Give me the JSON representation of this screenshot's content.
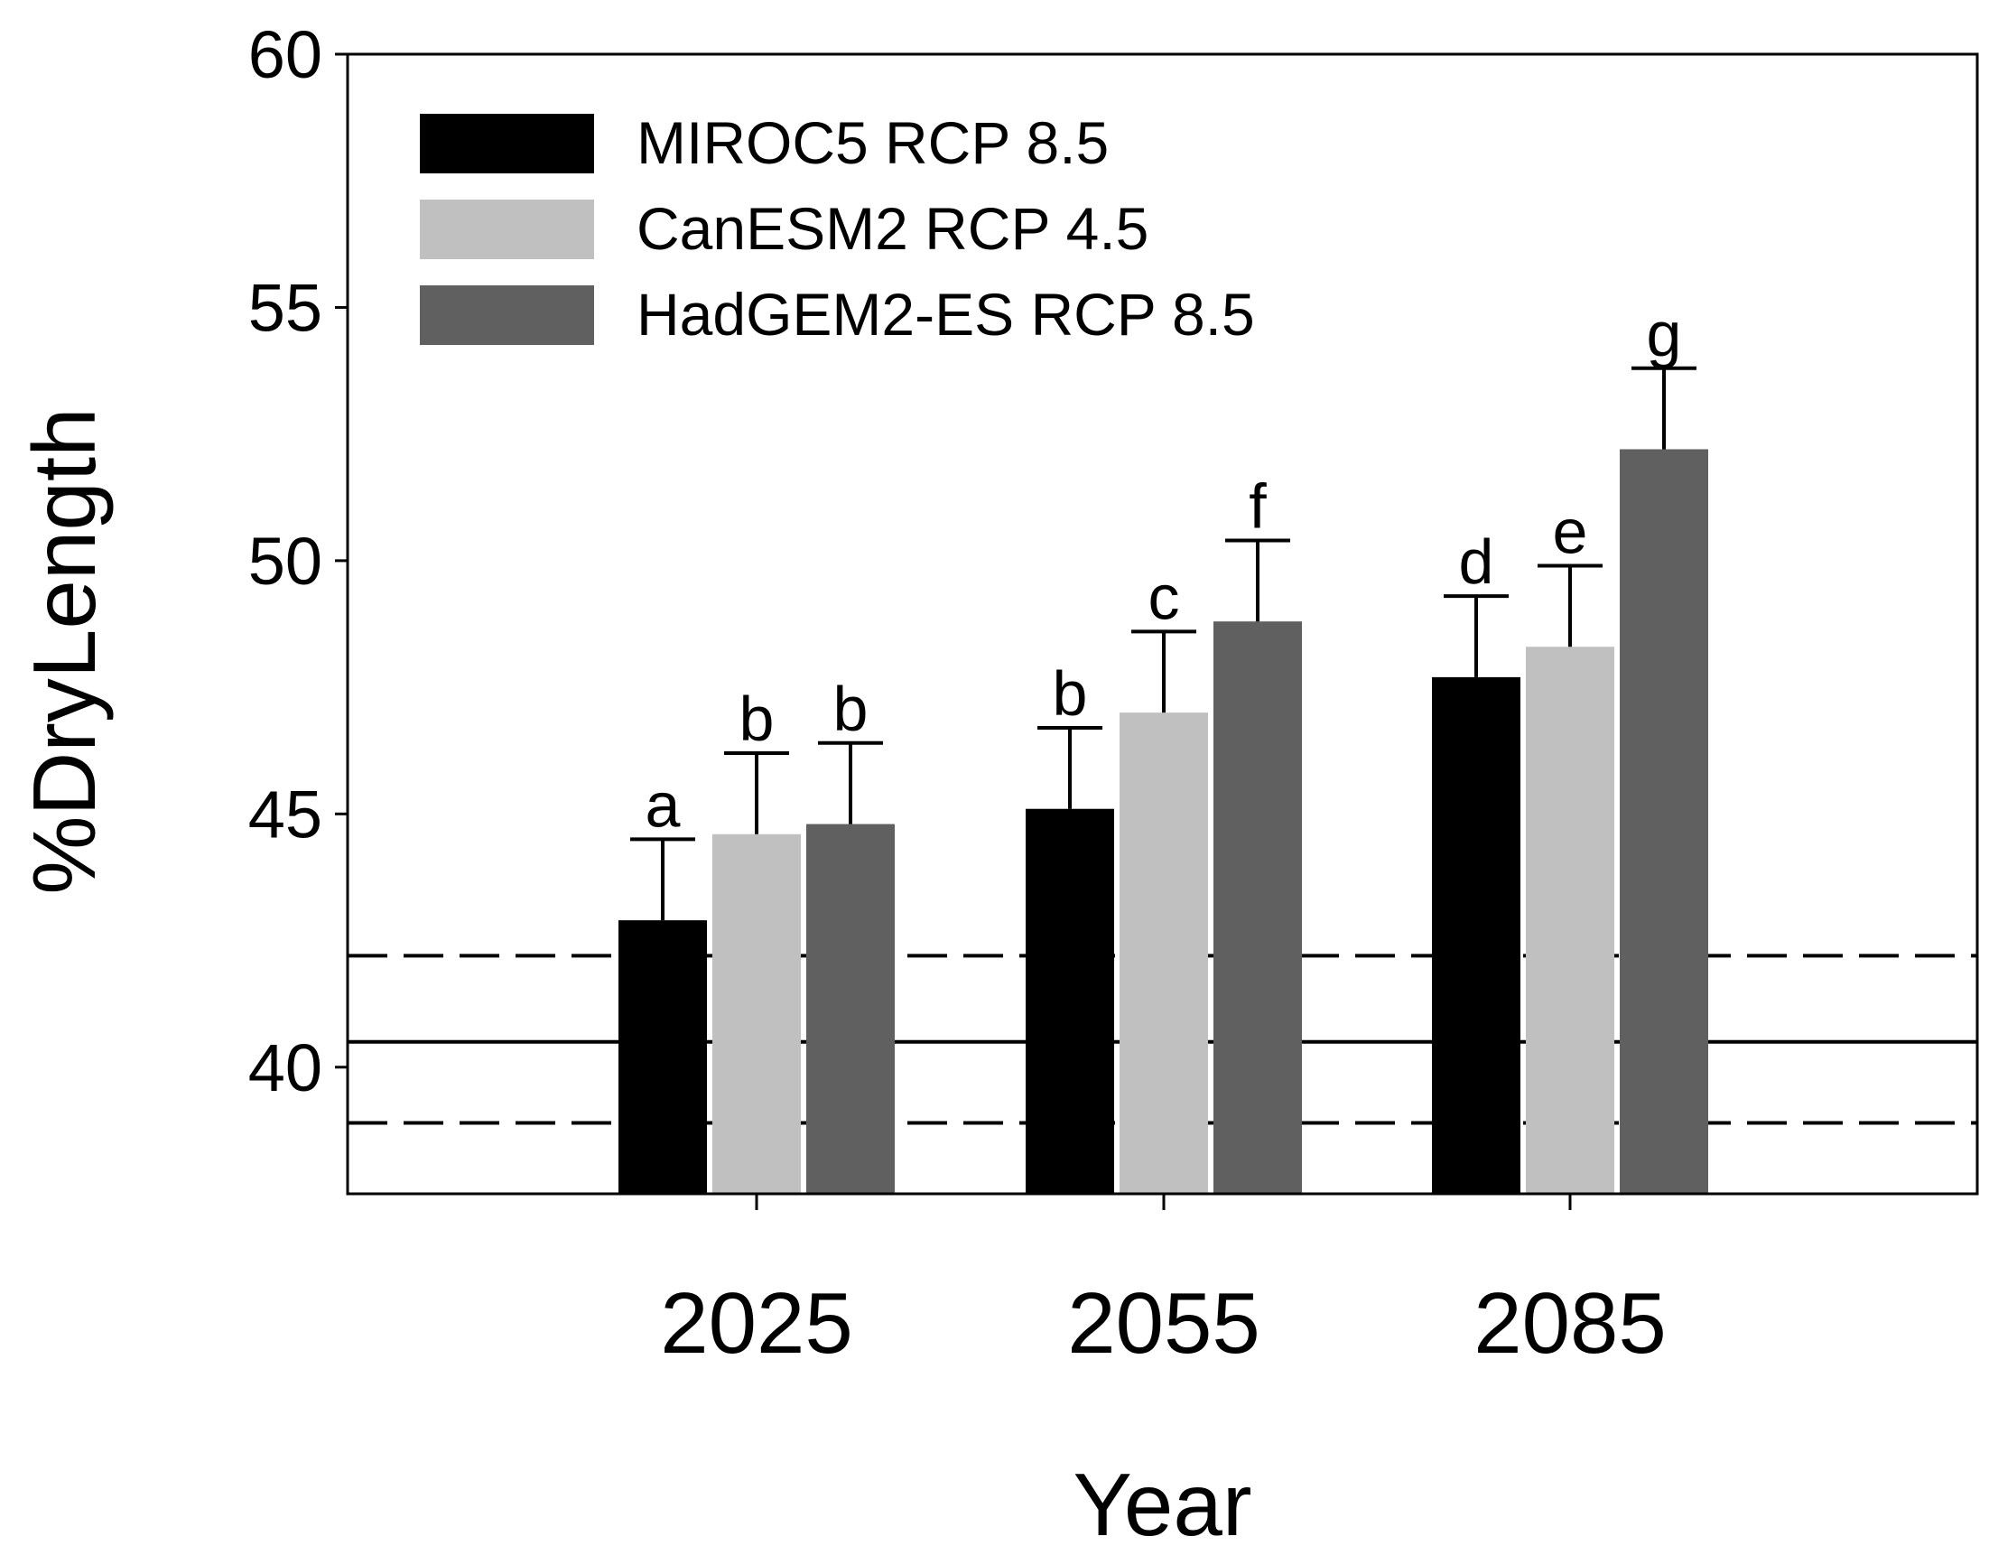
{
  "chart_data": {
    "type": "bar",
    "title": "",
    "xlabel": "Year",
    "ylabel": "%DryLength",
    "ylim": [
      37.5,
      60
    ],
    "yticks": [
      40,
      45,
      50,
      55,
      60
    ],
    "grid": false,
    "legend_position": "top-left",
    "categories": [
      "2025",
      "2055",
      "2085"
    ],
    "series": [
      {
        "name": "MIROC5 RCP 8.5",
        "color": "#000000",
        "values": [
          42.9,
          45.1,
          47.7
        ],
        "error_upper": [
          44.5,
          46.7,
          49.3
        ],
        "significance_labels": [
          "a",
          "b",
          "d"
        ]
      },
      {
        "name": "CanESM2 RCP 4.5",
        "color": "#c0c0c0",
        "values": [
          44.6,
          47.0,
          48.3
        ],
        "error_upper": [
          46.2,
          48.6,
          49.9
        ],
        "significance_labels": [
          "b",
          "c",
          "e"
        ]
      },
      {
        "name": "HadGEM2-ES RCP 8.5",
        "color": "#606060",
        "values": [
          44.8,
          48.8,
          52.2
        ],
        "error_upper": [
          46.4,
          50.4,
          53.8
        ],
        "significance_labels": [
          "b",
          "f",
          "g"
        ]
      }
    ],
    "reference_lines": [
      {
        "name": "baseline-mean",
        "value": 40.5,
        "style": "solid"
      },
      {
        "name": "baseline-upper",
        "value": 42.2,
        "style": "dashed"
      },
      {
        "name": "baseline-lower",
        "value": 38.9,
        "style": "dashed"
      }
    ]
  }
}
